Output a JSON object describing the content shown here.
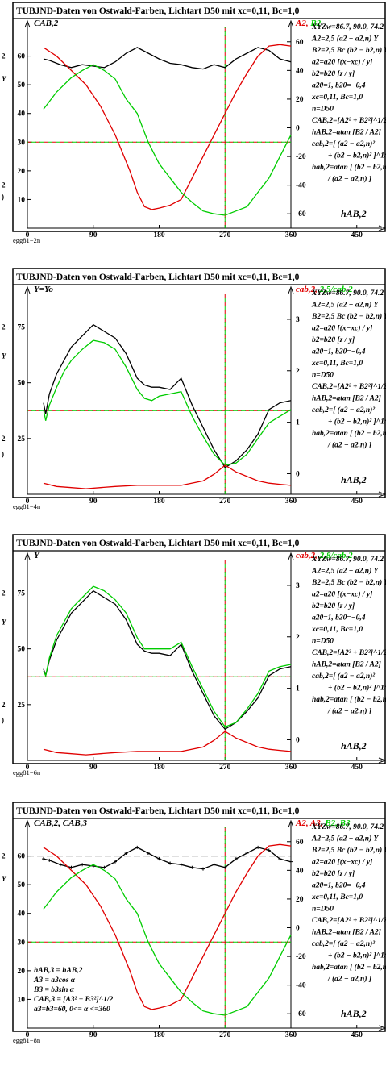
{
  "colors": {
    "black": "#000000",
    "red": "#e00000",
    "green": "#00cc00",
    "frame": "#000000"
  },
  "formula_text": {
    "xyz": "XYZw=86.7, 90.0, 74.2",
    "A2": "A2=2,5 (a2 − a2,n) Y",
    "B2": "B2=2,5 Bc (b2 − b2,n) Y",
    "a2": "a2=a20 [(x−xc) / y]",
    "b2": "b2=b20 [z / y]",
    "a20": "a20=1, b20=−0,4",
    "xc": "xc=0,11, Bc=1,0",
    "n": "n=D50",
    "CAB": "CAB,2=[A2² + B2²]^1/2",
    "hAB": "hAB,2=atan [B2 / A2]",
    "cab1": "cab,2=[ (a2 − a2,n)²",
    "cab2": "+ (b2 − b2,n)² ]^1/2",
    "hab1": "hab,2=atan [ (b2 − b2,n)",
    "hab2": "/ (a2 − a2,n) ]"
  },
  "left_edge_labels": {
    "p1_a": "2",
    "p1_b": "Y",
    "p1_c": "2",
    "p1_d": ")",
    "p2_a": "2",
    "p2_b": "Y",
    "p2_c": "2",
    "p2_d": ")",
    "p3_a": "2",
    "p3_b": "Y",
    "p3_c": "2",
    "p3_d": ")",
    "p4_a": "2",
    "p4_b": "Y"
  },
  "chart_data": [
    {
      "type": "line",
      "title": "TUBJND-Daten von Ostwald-Farben, Lichtart D50 mit xc=0,11, Bc=1,0",
      "footer": "egg81−2n",
      "ylabel_left": "CAB,2",
      "ylabel_right": "A2, B2",
      "xlabel": "hAB,2",
      "xlim": [
        0,
        480
      ],
      "x_ticks": [
        0,
        90,
        180,
        270,
        360,
        450
      ],
      "ylim_left": [
        0,
        70
      ],
      "y_ticks_left": [
        10,
        20,
        30,
        40,
        50,
        60
      ],
      "ylim_right": [
        -70,
        70
      ],
      "y_ticks_right": [
        -60,
        -40,
        -20,
        0,
        20,
        40,
        60
      ],
      "hlines_left": [
        30
      ],
      "vlines": [
        270
      ],
      "series": [
        {
          "color": "black",
          "axis": "left",
          "x": [
            22,
            30,
            45,
            60,
            75,
            90,
            105,
            120,
            135,
            150,
            165,
            180,
            195,
            210,
            225,
            240,
            255,
            270,
            285,
            300,
            315,
            330,
            345,
            360
          ],
          "y": [
            59,
            58.5,
            57,
            56,
            57,
            56.5,
            56,
            58,
            61,
            63,
            61,
            59,
            57.5,
            57,
            56,
            55.5,
            57,
            56,
            59,
            61,
            63,
            62,
            59,
            58
          ]
        },
        {
          "color": "red",
          "axis": "right",
          "x": [
            22,
            40,
            60,
            80,
            100,
            120,
            140,
            150,
            160,
            170,
            180,
            195,
            210,
            225,
            240,
            255,
            270,
            285,
            300,
            315,
            330,
            345,
            360
          ],
          "y": [
            56,
            50,
            40,
            30,
            15,
            -5,
            -30,
            -45,
            -55,
            -57,
            -56,
            -54,
            -50,
            -35,
            -20,
            -5,
            10,
            25,
            38,
            50,
            57,
            58,
            57
          ]
        },
        {
          "color": "green",
          "axis": "right",
          "x": [
            22,
            40,
            60,
            75,
            90,
            105,
            120,
            135,
            150,
            165,
            180,
            195,
            210,
            225,
            240,
            255,
            270,
            285,
            300,
            315,
            330,
            345,
            360
          ],
          "y": [
            13,
            25,
            35,
            40,
            44,
            40,
            34,
            20,
            10,
            -10,
            -25,
            -35,
            -45,
            -52,
            -58,
            -60,
            -61,
            -58,
            -55,
            -45,
            -35,
            -20,
            -5
          ]
        }
      ]
    },
    {
      "type": "line",
      "title": "TUBJND-Daten von Ostwald-Farben, Lichtart D50 mit xc=0,11, Bc=1,0",
      "footer": "egg81−4n",
      "ylabel_left": "Y=Yo",
      "ylabel_right": "cab,2, 2,5/cab,2",
      "xlabel": "hAB,2",
      "xlim": [
        0,
        480
      ],
      "x_ticks": [
        0,
        90,
        180,
        270,
        360,
        450
      ],
      "ylim_left": [
        0,
        90
      ],
      "y_ticks_left": [
        25,
        50,
        75
      ],
      "ylim_right": [
        -0.4,
        3.5
      ],
      "y_ticks_right": [
        0,
        1,
        2,
        3
      ],
      "hlines_left": [
        37.5
      ],
      "vlines": [
        270
      ],
      "series": [
        {
          "color": "black",
          "axis": "left",
          "x": [
            22,
            25,
            30,
            40,
            50,
            60,
            75,
            90,
            105,
            120,
            135,
            150,
            160,
            170,
            180,
            195,
            210,
            225,
            240,
            255,
            270,
            285,
            300,
            315,
            330,
            345,
            360
          ],
          "y": [
            41,
            36,
            45,
            54,
            60,
            66,
            71,
            76,
            73,
            70,
            63,
            52,
            49,
            48,
            48,
            47,
            52,
            40,
            30,
            20,
            12,
            15,
            20,
            27,
            38,
            41,
            42
          ]
        },
        {
          "color": "green",
          "axis": "left",
          "x": [
            22,
            25,
            30,
            40,
            50,
            60,
            75,
            90,
            105,
            120,
            135,
            150,
            160,
            170,
            180,
            195,
            210,
            225,
            240,
            255,
            270,
            285,
            300,
            315,
            330,
            345,
            360
          ],
          "y": [
            38,
            33,
            40,
            48,
            55,
            60,
            65,
            69,
            68,
            65,
            57,
            47,
            43,
            42,
            44,
            45,
            46,
            35,
            26,
            18,
            13,
            14,
            18,
            25,
            32,
            35,
            38
          ]
        },
        {
          "color": "red",
          "axis": "left",
          "x": [
            22,
            40,
            60,
            80,
            100,
            120,
            150,
            180,
            210,
            240,
            255,
            270,
            285,
            300,
            315,
            330,
            345,
            360
          ],
          "y": [
            5,
            3.5,
            3,
            2.5,
            3,
            3.5,
            4,
            4,
            4,
            6,
            9,
            13,
            10,
            8,
            6,
            5,
            4.5,
            4
          ]
        }
      ]
    },
    {
      "type": "line",
      "title": "TUBJND-Daten von Ostwald-Farben, Lichtart D50 mit xc=0,11, Bc=1,0",
      "footer": "egg81−6n",
      "ylabel_left": "Y",
      "ylabel_right": "cab,2, 2,8/cab,2",
      "xlabel": "hAB,2",
      "xlim": [
        0,
        480
      ],
      "x_ticks": [
        0,
        90,
        180,
        270,
        360,
        450
      ],
      "ylim_left": [
        0,
        90
      ],
      "y_ticks_left": [
        25,
        50,
        75
      ],
      "ylim_right": [
        -0.4,
        3.5
      ],
      "y_ticks_right": [
        0,
        1,
        2,
        3
      ],
      "hlines_left": [
        37.5
      ],
      "vlines": [
        270
      ],
      "series": [
        {
          "color": "black",
          "axis": "left",
          "x": [
            22,
            25,
            30,
            40,
            50,
            60,
            75,
            90,
            105,
            120,
            135,
            150,
            160,
            170,
            180,
            195,
            210,
            225,
            240,
            255,
            270,
            285,
            300,
            315,
            330,
            345,
            360
          ],
          "y": [
            41,
            38,
            45,
            54,
            60,
            66,
            71,
            76,
            73,
            70,
            63,
            52,
            49,
            48,
            48,
            47,
            52,
            40,
            30,
            20,
            14,
            17,
            22,
            28,
            38,
            41,
            42
          ]
        },
        {
          "color": "green",
          "axis": "left",
          "x": [
            22,
            25,
            30,
            40,
            50,
            60,
            75,
            90,
            105,
            120,
            135,
            150,
            160,
            170,
            180,
            195,
            210,
            225,
            240,
            255,
            270,
            285,
            300,
            315,
            330,
            345,
            360
          ],
          "y": [
            40,
            38,
            46,
            56,
            62,
            68,
            73,
            78,
            76,
            72,
            66,
            55,
            50,
            50,
            50,
            50,
            53,
            42,
            32,
            22,
            15,
            17,
            23,
            30,
            40,
            42,
            43
          ]
        },
        {
          "color": "red",
          "axis": "left",
          "x": [
            22,
            40,
            60,
            80,
            100,
            120,
            150,
            180,
            210,
            240,
            255,
            270,
            285,
            300,
            315,
            330,
            345,
            360
          ],
          "y": [
            5,
            3.5,
            3,
            2.5,
            3,
            3.5,
            4,
            4,
            4,
            6,
            9,
            13,
            10,
            8,
            6,
            5,
            4.5,
            4
          ]
        }
      ]
    },
    {
      "type": "line",
      "title": "TUBJND-Daten von Ostwald-Farben, Lichtart D50 mit xc=0,11, Bc=1,0",
      "footer": "egg81−8n",
      "ylabel_left": "CAB,2, CAB,3",
      "ylabel_right": "A2, A3, B2, B3",
      "xlabel": "hAB,2",
      "xlim": [
        0,
        480
      ],
      "x_ticks": [
        0,
        90,
        180,
        270,
        360,
        450
      ],
      "ylim_left": [
        0,
        70
      ],
      "y_ticks_left": [
        10,
        20,
        30,
        40,
        50,
        60
      ],
      "ylim_right": [
        -70,
        70
      ],
      "y_ticks_right": [
        -60,
        -40,
        -20,
        0,
        20,
        40,
        60
      ],
      "hlines_left": [
        30
      ],
      "hlines_left_dashed": [
        60
      ],
      "vlines": [
        270
      ],
      "note_lines": [
        "hAB,3 = hAB,2",
        "A3 = a3cos α",
        "B3 = b3sin α",
        "CAB,3 = [A3² + B3²]^1/2",
        "a3=b3=60, 0<= α <=360"
      ],
      "series": [
        {
          "color": "black",
          "axis": "left",
          "markers": true,
          "x": [
            22,
            30,
            45,
            60,
            75,
            90,
            105,
            120,
            135,
            150,
            165,
            180,
            195,
            210,
            225,
            240,
            255,
            270,
            285,
            300,
            315,
            330,
            345,
            360
          ],
          "y": [
            59,
            58.5,
            57,
            56,
            57,
            56.5,
            56,
            58,
            61,
            63,
            61,
            59,
            57.5,
            57,
            56,
            55.5,
            57,
            56,
            59,
            61,
            63,
            62,
            59,
            58
          ]
        },
        {
          "color": "red",
          "axis": "right",
          "x": [
            22,
            40,
            60,
            80,
            100,
            120,
            140,
            150,
            160,
            170,
            180,
            195,
            210,
            225,
            240,
            255,
            270,
            285,
            300,
            315,
            330,
            345,
            360
          ],
          "y": [
            56,
            50,
            40,
            30,
            15,
            -5,
            -30,
            -45,
            -55,
            -57,
            -56,
            -54,
            -50,
            -35,
            -20,
            -5,
            10,
            25,
            38,
            50,
            57,
            58,
            57
          ]
        },
        {
          "color": "green",
          "axis": "right",
          "x": [
            22,
            40,
            60,
            75,
            90,
            105,
            120,
            135,
            150,
            165,
            180,
            195,
            210,
            225,
            240,
            255,
            270,
            285,
            300,
            315,
            330,
            345,
            360
          ],
          "y": [
            13,
            25,
            35,
            40,
            44,
            40,
            34,
            20,
            10,
            -10,
            -25,
            -35,
            -45,
            -52,
            -58,
            -60,
            -61,
            -58,
            -55,
            -45,
            -35,
            -20,
            -5
          ]
        }
      ]
    }
  ]
}
